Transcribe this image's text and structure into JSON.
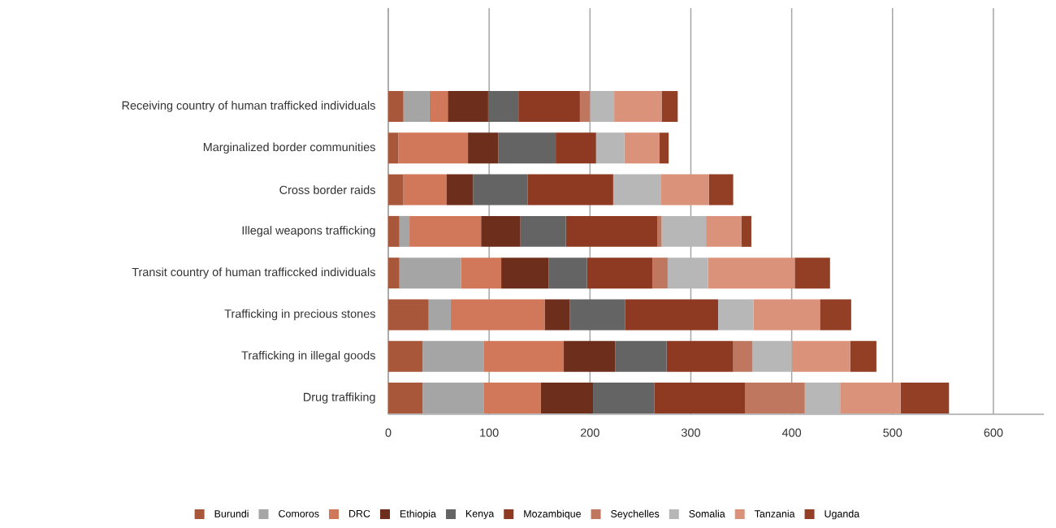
{
  "chart_data": {
    "type": "bar",
    "orientation": "horizontal",
    "stacked": true,
    "categories": [
      "Receiving country of human trafficked individuals",
      "Marginalized border communities",
      "Cross border raids",
      "Illegal weapons trafficking",
      "Transit country of human trafficcked individuals",
      "Trafficking in precious stones",
      "Trafficking in illegal goods",
      "Drug traffiking"
    ],
    "series": [
      {
        "name": "Burundi",
        "color": "#a9573a",
        "values": [
          15,
          10,
          15,
          11,
          11,
          40,
          34,
          34
        ]
      },
      {
        "name": "Comoros",
        "color": "#a5a5a5",
        "values": [
          26,
          0,
          0,
          10,
          61,
          22,
          61,
          61
        ]
      },
      {
        "name": "DRC",
        "color": "#d2785a",
        "values": [
          18,
          69,
          43,
          71,
          40,
          93,
          79,
          56
        ]
      },
      {
        "name": "Ethiopia",
        "color": "#6e2e1c",
        "values": [
          40,
          30,
          26,
          39,
          47,
          25,
          51,
          52
        ]
      },
      {
        "name": "Kenya",
        "color": "#646464",
        "values": [
          30,
          57,
          54,
          45,
          38,
          55,
          51,
          61
        ]
      },
      {
        "name": "Mozambique",
        "color": "#8e3a22",
        "values": [
          61,
          40,
          85,
          91,
          65,
          92,
          66,
          90
        ]
      },
      {
        "name": "Seychelles",
        "color": "#bf7760",
        "values": [
          10,
          0,
          0,
          4,
          15,
          0,
          19,
          59
        ]
      },
      {
        "name": "Somalia",
        "color": "#b7b7b7",
        "values": [
          24,
          28,
          47,
          44,
          40,
          35,
          39,
          35
        ]
      },
      {
        "name": "Tanzania",
        "color": "#db927a",
        "values": [
          47,
          35,
          48,
          35,
          86,
          66,
          58,
          60
        ]
      },
      {
        "name": "Uganda",
        "color": "#933f26",
        "values": [
          16,
          9,
          24,
          10,
          35,
          31,
          26,
          48
        ]
      }
    ],
    "xlim": [
      0,
      650
    ],
    "xticks": [
      0,
      100,
      200,
      300,
      400,
      500,
      600
    ],
    "grid": "x",
    "legend": "bottom"
  }
}
